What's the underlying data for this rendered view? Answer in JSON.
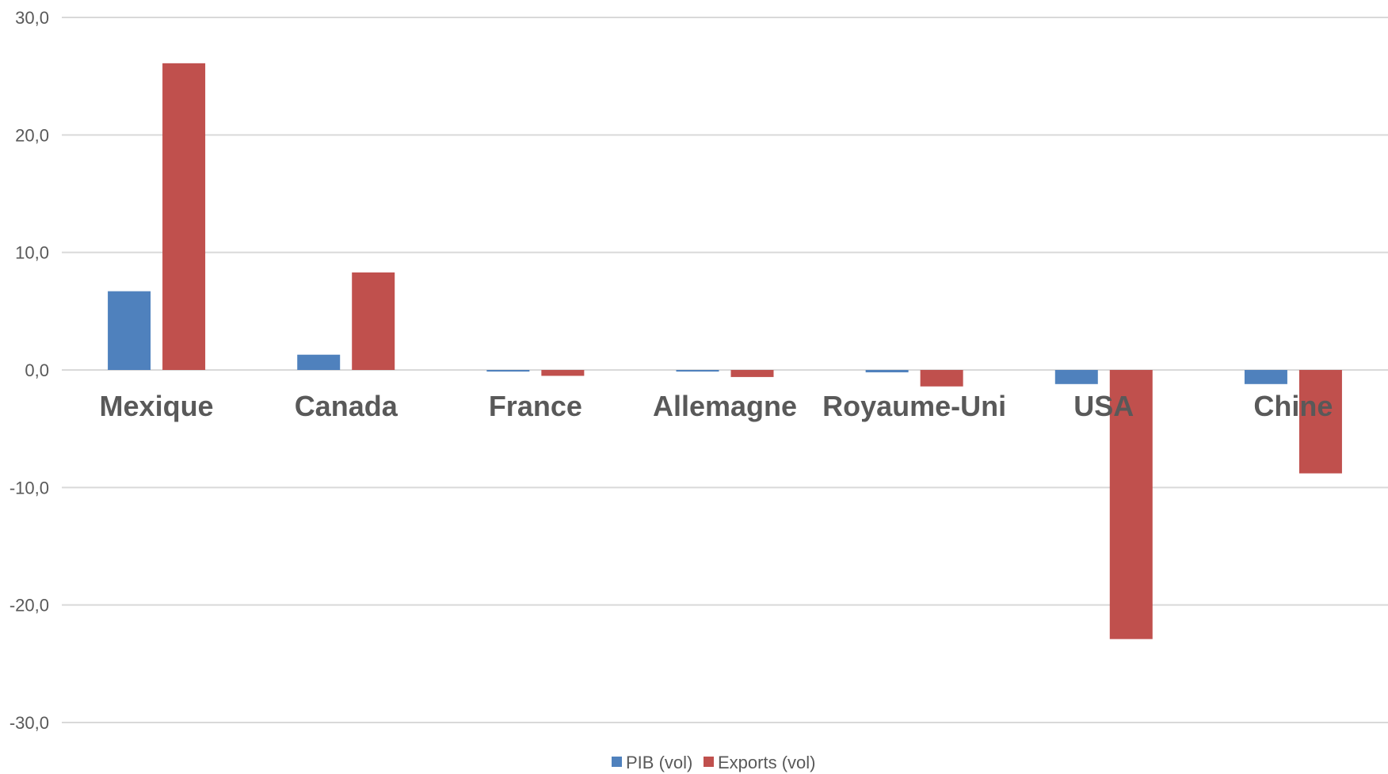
{
  "chart_data": {
    "type": "bar",
    "categories": [
      "Mexique",
      "Canada",
      "France",
      "Allemagne",
      "Royaume-Uni",
      "USA",
      "Chine"
    ],
    "series": [
      {
        "name": "PIB (vol)",
        "color": "#4f81bd",
        "values": [
          6.7,
          1.3,
          -0.1,
          -0.1,
          -0.2,
          -1.2,
          -1.2
        ]
      },
      {
        "name": "Exports (vol)",
        "color": "#c0504d",
        "values": [
          26.1,
          8.3,
          -0.5,
          -0.6,
          -1.4,
          -22.9,
          -8.8
        ]
      }
    ],
    "yticks": [
      "30,0",
      "20,0",
      "10,0",
      "0,0",
      "-10,0",
      "-20,0",
      "-30,0"
    ],
    "ylim": [
      -30,
      30
    ],
    "grid": true,
    "legend_position": "bottom"
  }
}
